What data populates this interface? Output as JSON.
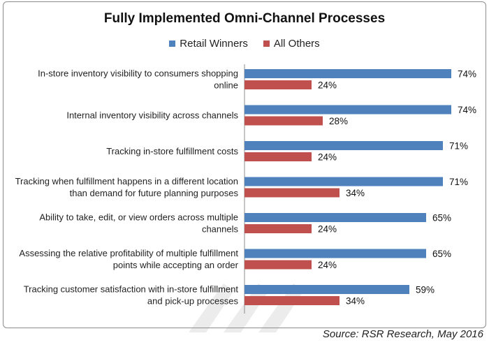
{
  "chart_data": {
    "type": "bar",
    "orientation": "horizontal",
    "title": "Fully Implemented Omni-Channel Processes",
    "categories": [
      [
        "In-store inventory visibility to consumers shopping",
        "online"
      ],
      [
        "Internal inventory visibility across channels"
      ],
      [
        "Tracking in-store fulfillment costs"
      ],
      [
        "Tracking when fulfillment happens in a different location",
        "than demand for future planning purposes"
      ],
      [
        "Ability to take, edit, or view orders across multiple",
        "channels"
      ],
      [
        "Assessing the relative profitability of multiple fulfillment",
        "points while accepting an order"
      ],
      [
        "Tracking customer satisfaction with in-store fulfillment",
        "and pick-up processes"
      ]
    ],
    "series": [
      {
        "name": "Retail Winners",
        "color": "#4f81bd",
        "values": [
          74,
          74,
          71,
          71,
          65,
          65,
          59
        ],
        "labels": [
          "74%",
          "74%",
          "71%",
          "71%",
          "65%",
          "65%",
          "59%"
        ]
      },
      {
        "name": "All Others",
        "color": "#c0504d",
        "values": [
          24,
          28,
          24,
          34,
          24,
          24,
          34
        ],
        "labels": [
          "24%",
          "28%",
          "24%",
          "34%",
          "24%",
          "24%",
          "34%"
        ]
      }
    ],
    "xlim": [
      0,
      100
    ],
    "grid": false,
    "legend": "top-center"
  },
  "source": "Source: RSR Research, May 2016"
}
